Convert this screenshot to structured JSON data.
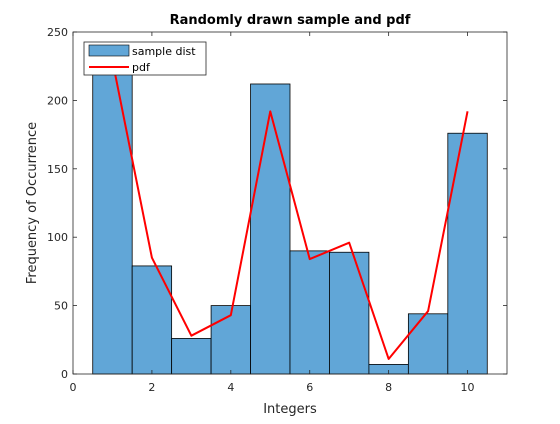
{
  "chart_data": {
    "type": "bar",
    "title": "Randomly drawn sample and pdf",
    "xlabel": "Integers",
    "ylabel": "Frequency of Occurrence",
    "xlim": [
      0,
      11
    ],
    "ylim": [
      0,
      250
    ],
    "xticks": [
      0,
      2,
      4,
      6,
      8,
      10
    ],
    "yticks": [
      0,
      50,
      100,
      150,
      200,
      250
    ],
    "grid": false,
    "legend_position": "top-left",
    "bar_color": "#61a6d7",
    "line_color": "#ff0000",
    "series": [
      {
        "name": "sample dist",
        "type": "bar",
        "bin_width": 1,
        "x": [
          1,
          2,
          3,
          4,
          5,
          6,
          7,
          8,
          9,
          10
        ],
        "values": [
          226,
          79,
          26,
          50,
          212,
          90,
          89,
          7,
          44,
          176
        ]
      },
      {
        "name": "pdf",
        "type": "line",
        "x": [
          1,
          2,
          3,
          4,
          5,
          6,
          7,
          8,
          9,
          10
        ],
        "values": [
          229,
          85,
          28,
          43,
          192,
          84,
          96,
          11,
          46,
          192
        ]
      }
    ]
  }
}
